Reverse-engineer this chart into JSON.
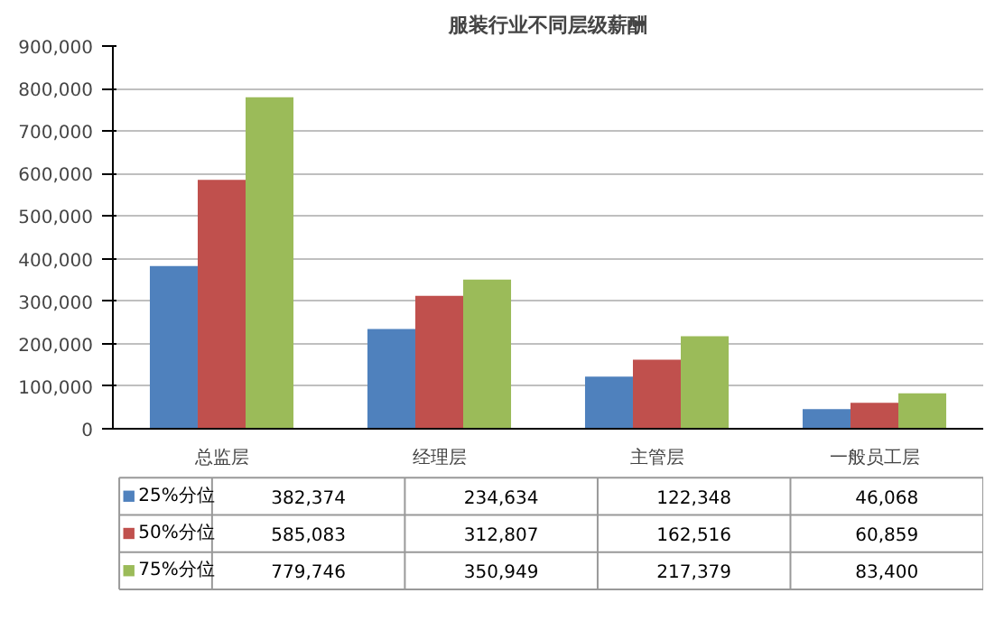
{
  "chart_data": {
    "type": "bar",
    "title": "服装行业不同层级薪酬",
    "categories": [
      "总监层",
      "经理层",
      "主管层",
      "一般员工层"
    ],
    "series": [
      {
        "name": "25%分位",
        "color": "#4f81bd",
        "values": [
          382374,
          234634,
          122348,
          46068
        ],
        "value_labels": [
          "382,374",
          "234,634",
          "122,348",
          "46,068"
        ]
      },
      {
        "name": "50%分位",
        "color": "#c0504d",
        "values": [
          585083,
          312807,
          162516,
          60859
        ],
        "value_labels": [
          "585,083",
          "312,807",
          "162,516",
          "60,859"
        ]
      },
      {
        "name": "75%分位",
        "color": "#9bbb59",
        "values": [
          779746,
          350949,
          217379,
          83400
        ],
        "value_labels": [
          "779,746",
          "350,949",
          "217,379",
          "83,400"
        ]
      }
    ],
    "ylim": [
      0,
      900000
    ],
    "yticks": [
      {
        "value": 0,
        "label": "0"
      },
      {
        "value": 100000,
        "label": "100,000"
      },
      {
        "value": 200000,
        "label": "200,000"
      },
      {
        "value": 300000,
        "label": "300,000"
      },
      {
        "value": 400000,
        "label": "400,000"
      },
      {
        "value": 500000,
        "label": "500,000"
      },
      {
        "value": 600000,
        "label": "600,000"
      },
      {
        "value": 700000,
        "label": "700,000"
      },
      {
        "value": 800000,
        "label": "800,000"
      },
      {
        "value": 900000,
        "label": "900,000"
      }
    ],
    "grid": "y",
    "legend": "bottom"
  }
}
